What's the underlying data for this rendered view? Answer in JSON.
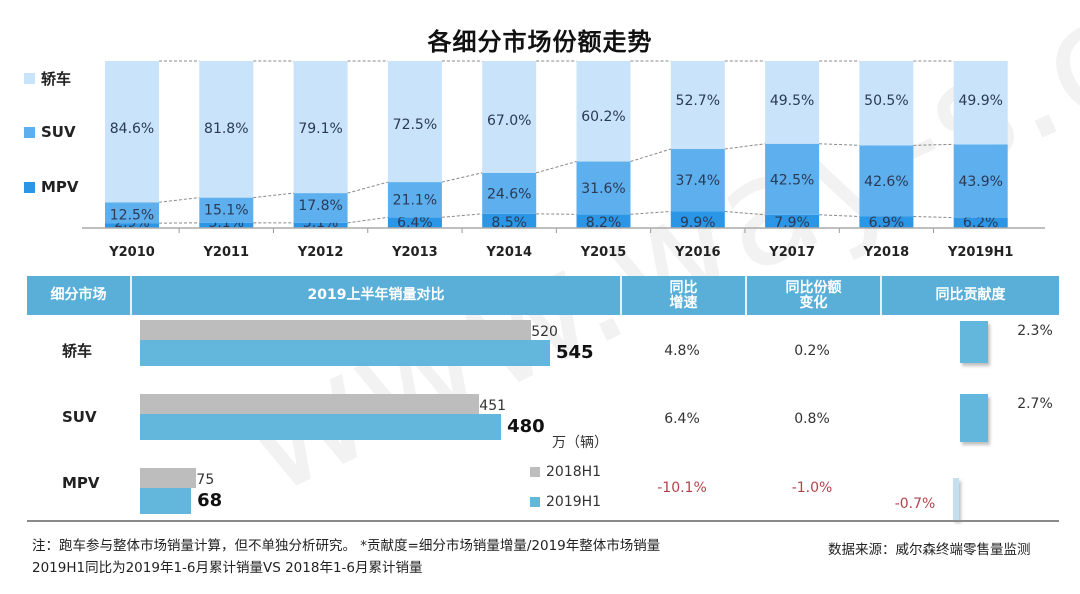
{
  "title": "各细分市场份额走势",
  "watermark": "www.way-s.cn",
  "colors": {
    "sedan": "#c9e4fa",
    "suv": "#5eafee",
    "mpv": "#2b95e6",
    "header": "#5aafd9",
    "bar_2018": "#bdbdbd",
    "bar_2019": "#63b6dc",
    "negative_text": "#b2434a",
    "contrib_negative": "#c4e0ef"
  },
  "chart_data": [
    {
      "type": "bar",
      "stacked": true,
      "percent": true,
      "title": "各细分市场份额走势",
      "categories": [
        "Y2010",
        "Y2011",
        "Y2012",
        "Y2013",
        "Y2014",
        "Y2015",
        "Y2016",
        "Y2017",
        "Y2018",
        "Y2019H1"
      ],
      "series": [
        {
          "name": "MPV",
          "values": [
            2.9,
            3.1,
            3.1,
            6.4,
            8.5,
            8.2,
            9.9,
            7.9,
            6.9,
            6.2
          ],
          "labels": [
            "2.9%",
            "3.1%",
            "3.1%",
            "6.4%",
            "8.5%",
            "8.2%",
            "9.9%",
            "7.9%",
            "6.9%",
            "6.2%"
          ]
        },
        {
          "name": "SUV",
          "values": [
            12.5,
            15.1,
            17.8,
            21.1,
            24.6,
            31.6,
            37.4,
            42.5,
            42.6,
            43.9
          ],
          "labels": [
            "12.5%",
            "15.1%",
            "17.8%",
            "21.1%",
            "24.6%",
            "31.6%",
            "37.4%",
            "42.5%",
            "42.6%",
            "43.9%"
          ]
        },
        {
          "name": "轿车",
          "values": [
            84.6,
            81.8,
            79.1,
            72.5,
            67.0,
            60.2,
            52.7,
            49.5,
            50.5,
            49.9
          ],
          "labels": [
            "84.6%",
            "81.8%",
            "79.1%",
            "72.5%",
            "67.0%",
            "60.2%",
            "52.7%",
            "49.5%",
            "50.5%",
            "49.9%"
          ]
        }
      ],
      "legend": [
        "轿车",
        "SUV",
        "MPV"
      ],
      "legend_position": "left",
      "ylim": [
        0,
        100
      ],
      "grid": false,
      "xlabel": "",
      "ylabel": ""
    },
    {
      "type": "bar",
      "orientation": "horizontal",
      "title": "2019上半年销量对比",
      "unit": "万（辆）",
      "categories": [
        "轿车",
        "SUV",
        "MPV"
      ],
      "series": [
        {
          "name": "2018H1",
          "values": [
            520,
            451,
            75
          ]
        },
        {
          "name": "2019H1",
          "values": [
            545,
            480,
            68
          ]
        }
      ],
      "legend": [
        "2018H1",
        "2019H1"
      ],
      "legend_position": "right"
    },
    {
      "type": "bar",
      "title": "同比贡献度",
      "categories": [
        "轿车",
        "SUV",
        "MPV"
      ],
      "values": [
        2.3,
        2.7,
        -0.7
      ],
      "labels": [
        "2.3%",
        "2.7%",
        "-0.7%"
      ]
    }
  ],
  "table": {
    "headers": {
      "segment": "细分市场",
      "comparison": "2019上半年销量对比",
      "yoy_growth": [
        "同比",
        "增速"
      ],
      "share_change": [
        "同比份额",
        "变化"
      ],
      "contribution": "同比贡献度"
    },
    "rows": [
      {
        "segment": "轿车",
        "h1_2018": "520",
        "h1_2019": "545",
        "yoy_growth": "4.8%",
        "share_change": "0.2%",
        "contribution": "2.3%"
      },
      {
        "segment": "SUV",
        "h1_2018": "451",
        "h1_2019": "480",
        "yoy_growth": "6.4%",
        "share_change": "0.8%",
        "contribution": "2.7%"
      },
      {
        "segment": "MPV",
        "h1_2018": "75",
        "h1_2019": "68",
        "yoy_growth": "-10.1%",
        "share_change": "-1.0%",
        "contribution": "-0.7%"
      }
    ],
    "unit": "万（辆）",
    "legend": [
      "2018H1",
      "2019H1"
    ]
  },
  "notes": {
    "line1": "注：跑车参与整体市场销量计算，但不单独分析研究。 *贡献度=细分市场销量增量/2019年整体市场销量",
    "line2": "2019H1同比为2019年1-6月累计销量VS 2018年1-6月累计销量",
    "source": "数据来源：威尔森终端零售量监测"
  }
}
